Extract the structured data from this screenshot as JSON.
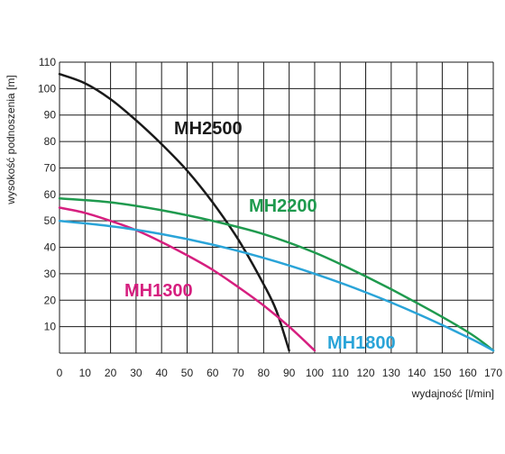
{
  "chart_data": {
    "type": "line",
    "title": "",
    "xlabel": "wydajność [l/min]",
    "ylabel": "wysokość podnoszenia [m]",
    "xlim": [
      0,
      170
    ],
    "ylim": [
      0,
      110
    ],
    "x_ticks": [
      0,
      10,
      20,
      30,
      40,
      50,
      60,
      70,
      80,
      90,
      100,
      110,
      120,
      130,
      140,
      150,
      160,
      170
    ],
    "y_ticks": [
      10,
      20,
      30,
      40,
      50,
      60,
      70,
      80,
      90,
      100,
      110
    ],
    "grid": true,
    "legend": "none",
    "series": [
      {
        "name": "MH2500",
        "color": "#1a1a1a",
        "x": [
          0,
          10,
          20,
          30,
          40,
          50,
          60,
          70,
          80,
          85,
          90
        ],
        "y": [
          105.5,
          102,
          96,
          88,
          79,
          69,
          57,
          43,
          26,
          16,
          1
        ]
      },
      {
        "name": "MH2200",
        "color": "#1f9a4e",
        "x": [
          0,
          20,
          40,
          60,
          80,
          100,
          120,
          140,
          160,
          170
        ],
        "y": [
          58.5,
          57,
          54,
          50,
          45,
          38,
          29,
          19,
          8,
          1
        ]
      },
      {
        "name": "MH1300",
        "color": "#d61f7f",
        "x": [
          0,
          10,
          20,
          30,
          40,
          50,
          60,
          70,
          80,
          90,
          100
        ],
        "y": [
          55,
          53,
          50,
          46.5,
          42,
          37,
          31.5,
          25,
          18,
          10,
          1
        ]
      },
      {
        "name": "MH1800",
        "color": "#2aa4d8",
        "x": [
          0,
          20,
          40,
          60,
          80,
          100,
          120,
          140,
          160,
          170
        ],
        "y": [
          50,
          48,
          45,
          41,
          36,
          30,
          23,
          15,
          6,
          1
        ]
      }
    ]
  }
}
